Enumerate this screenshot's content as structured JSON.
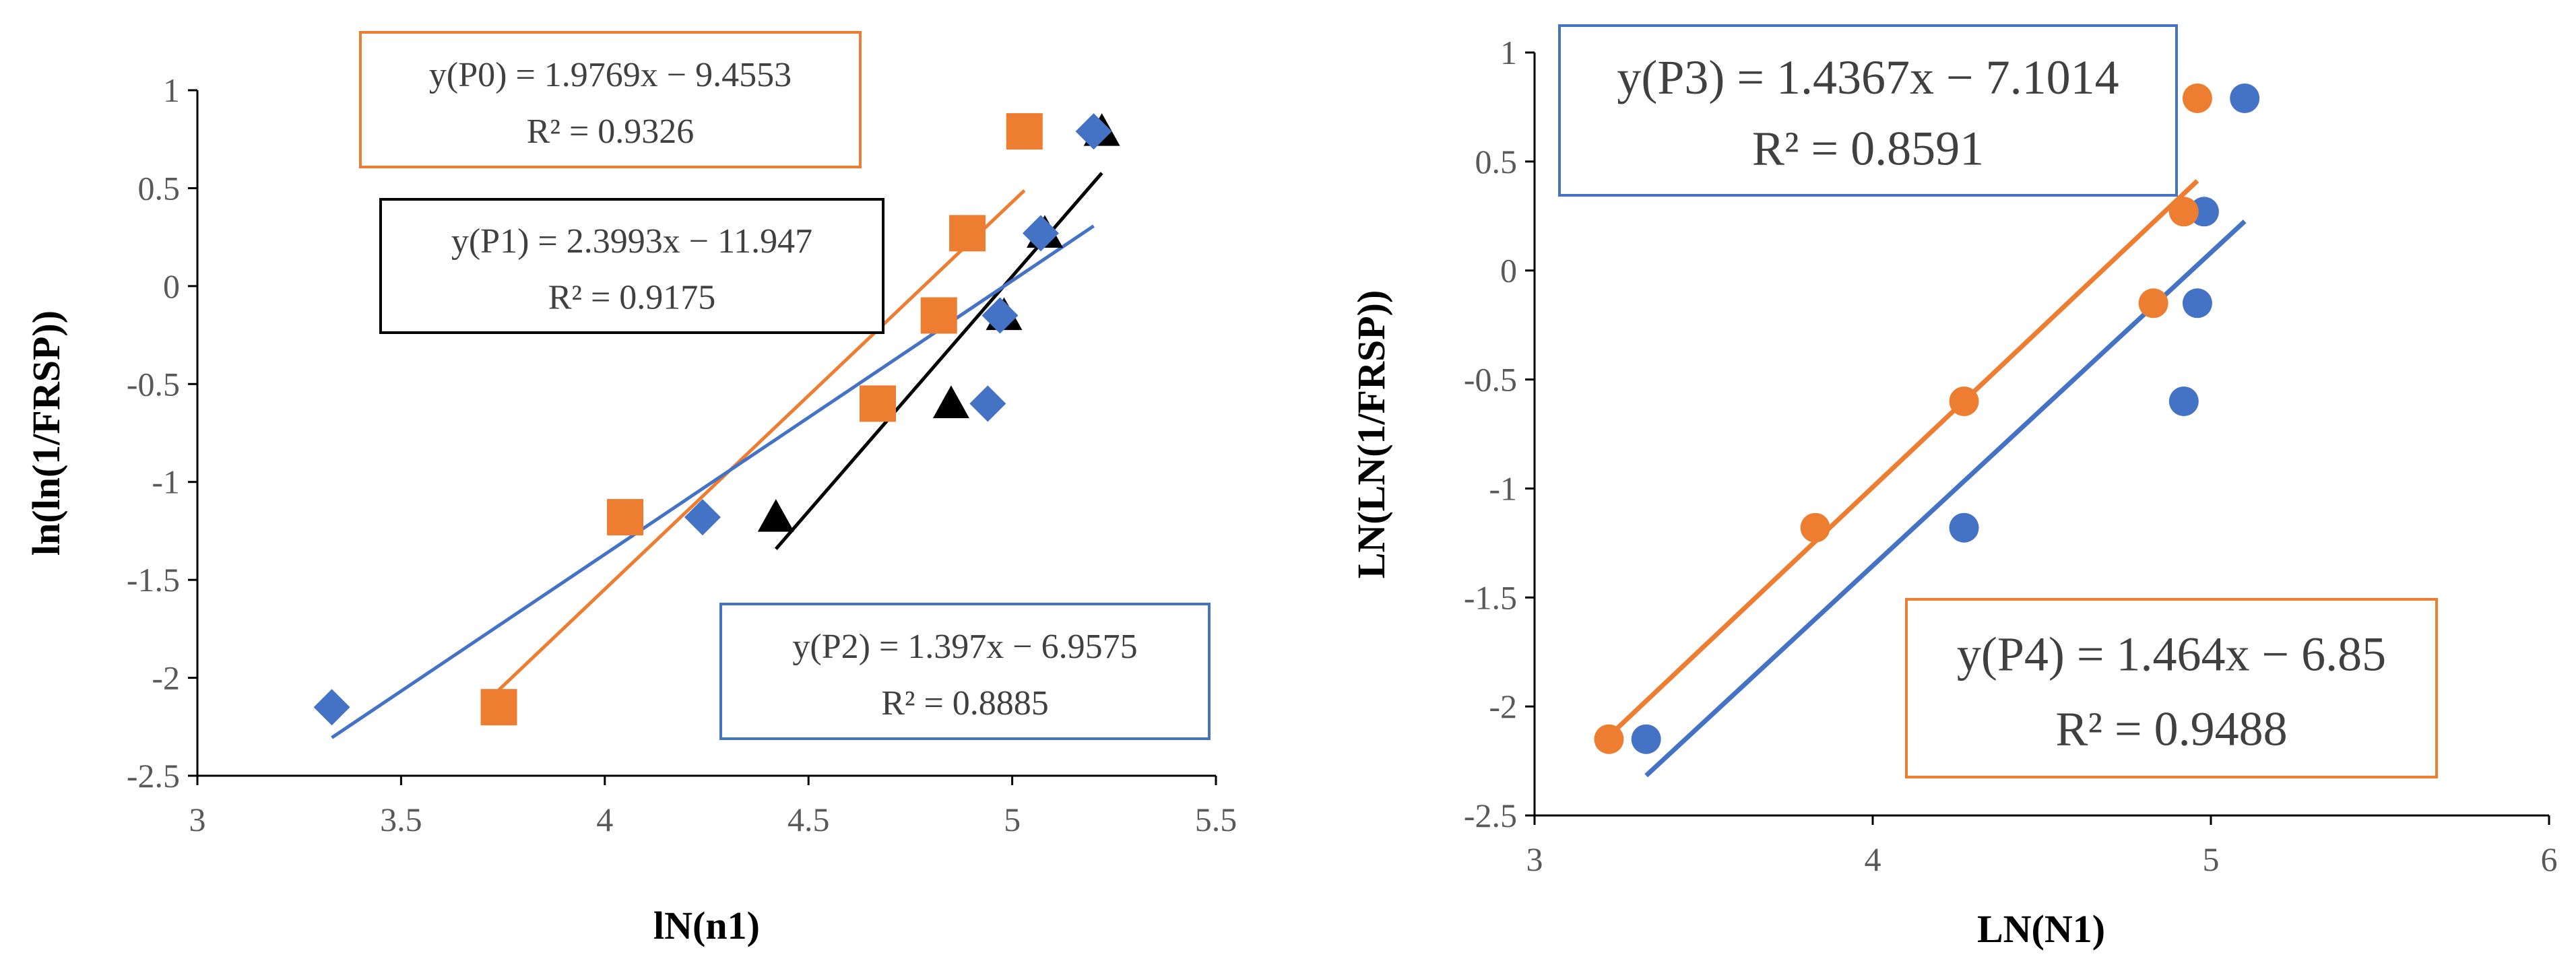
{
  "chart_data": [
    {
      "type": "scatter",
      "xlabel": "lN(n1)",
      "ylabel": "ln(ln(1/FRSP))",
      "xlim": [
        3,
        5.5
      ],
      "ylim": [
        -2.5,
        1
      ],
      "x_ticks": [
        "3",
        "3.5",
        "4",
        "4.5",
        "5",
        "5.5"
      ],
      "y_ticks": [
        "-2.5",
        "-2",
        "-1.5",
        "-1",
        "-0.5",
        "0",
        "0.5",
        "1"
      ],
      "series": [
        {
          "name": "P0",
          "marker": "square",
          "color": "#ED7D31",
          "x": [
            3.74,
            4.05,
            4.67,
            4.82,
            4.89,
            5.03
          ],
          "y": [
            -2.15,
            -1.18,
            -0.6,
            -0.15,
            0.27,
            0.79
          ],
          "trendline": {
            "slope": 1.9769,
            "intercept": -9.4553,
            "x_range": [
              3.74,
              5.03
            ]
          },
          "equation": "y(P0) = 1.9769x − 9.4553",
          "r2": "R² = 0.9326"
        },
        {
          "name": "P1",
          "marker": "triangle",
          "color": "#000000",
          "x": [
            4.42,
            4.85,
            4.98,
            5.08,
            5.22
          ],
          "y": [
            -1.18,
            -0.6,
            -0.15,
            0.27,
            0.79
          ],
          "trendline": {
            "slope": 2.3993,
            "intercept": -11.947,
            "x_range": [
              4.42,
              5.22
            ]
          },
          "equation": "y(P1) = 2.3993x − 11.947",
          "r2": "R² = 0.9175"
        },
        {
          "name": "P2",
          "marker": "diamond",
          "color": "#4472C4",
          "x": [
            3.33,
            4.24,
            4.94,
            4.97,
            5.07,
            5.2
          ],
          "y": [
            -2.15,
            -1.18,
            -0.6,
            -0.15,
            0.27,
            0.79
          ],
          "trendline": {
            "slope": 1.397,
            "intercept": -6.9575,
            "x_range": [
              3.33,
              5.2
            ]
          },
          "equation": "y(P2) = 1.397x − 6.9575",
          "r2": "R² = 0.8885"
        }
      ]
    },
    {
      "type": "scatter",
      "xlabel": "LN(N1)",
      "ylabel": "LN(LN(1/FRSP))",
      "xlim": [
        3,
        6
      ],
      "ylim": [
        -2.5,
        1
      ],
      "x_ticks": [
        "3",
        "4",
        "5",
        "6"
      ],
      "y_ticks": [
        "-2.5",
        "-2",
        "-1.5",
        "-1",
        "-0.5",
        "0",
        "0.5",
        "1"
      ],
      "series": [
        {
          "name": "P3",
          "marker": "circle",
          "color": "#4472C4",
          "x": [
            3.33,
            4.27,
            4.92,
            4.96,
            4.98,
            5.1
          ],
          "y": [
            -2.15,
            -1.18,
            -0.6,
            -0.15,
            0.27,
            0.79
          ],
          "trendline": {
            "slope": 1.4367,
            "intercept": -7.1014,
            "x_range": [
              3.33,
              5.1
            ]
          },
          "equation": "y(P3) = 1.4367x − 7.1014",
          "r2": "R² = 0.8591"
        },
        {
          "name": "P4",
          "marker": "circle",
          "color": "#ED7D31",
          "x": [
            3.22,
            3.83,
            4.27,
            4.83,
            4.92,
            4.96
          ],
          "y": [
            -2.15,
            -1.18,
            -0.6,
            -0.15,
            0.27,
            0.79
          ],
          "trendline": {
            "slope": 1.464,
            "intercept": -6.85,
            "x_range": [
              3.22,
              4.96
            ]
          },
          "equation": "y(P4) = 1.464x − 6.85",
          "r2": "R² = 0.9488"
        }
      ]
    }
  ]
}
